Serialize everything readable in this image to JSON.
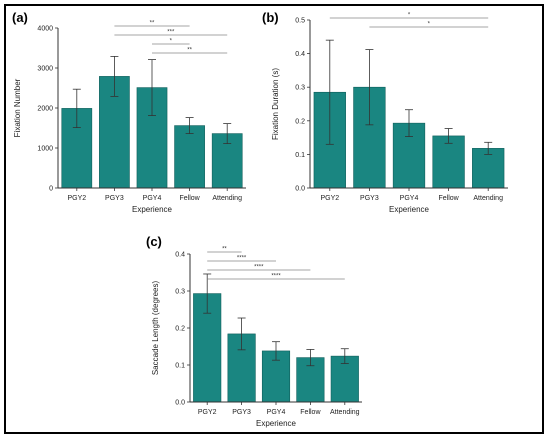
{
  "figure": {
    "colors": {
      "bar": "#1a8681",
      "bar_stroke": "#0f5e5a",
      "axis": "#333333",
      "error": "#333333",
      "sig_line": "#888888"
    }
  },
  "chart_data": [
    {
      "type": "bar",
      "panel": "(a)",
      "categories": [
        "PGY2",
        "PGY3",
        "PGY4",
        "Fellow",
        "Attending"
      ],
      "values": [
        1990,
        2790,
        2510,
        1560,
        1360
      ],
      "errors": [
        480,
        500,
        700,
        200,
        250
      ],
      "xlabel": "Experience",
      "ylabel": "Fixation Number",
      "ylim": [
        0,
        4000
      ],
      "yticks": [
        0,
        1000,
        2000,
        3000,
        4000
      ],
      "ytick_labels": [
        "0",
        "1000",
        "2000",
        "3000",
        "4000"
      ],
      "significance": [
        {
          "from": 1,
          "to": 3,
          "label": "**"
        },
        {
          "from": 1,
          "to": 4,
          "label": "***"
        },
        {
          "from": 2,
          "to": 3,
          "label": "*"
        },
        {
          "from": 2,
          "to": 4,
          "label": "**"
        }
      ]
    },
    {
      "type": "bar",
      "panel": "(b)",
      "categories": [
        "PGY2",
        "PGY3",
        "PGY4",
        "Fellow",
        "Attending"
      ],
      "values": [
        0.285,
        0.3,
        0.193,
        0.155,
        0.118
      ],
      "errors": [
        0.155,
        0.112,
        0.04,
        0.022,
        0.018
      ],
      "xlabel": "Experience",
      "ylabel": "Fixation Duration (s)",
      "ylim": [
        0,
        0.5
      ],
      "yticks": [
        0,
        0.1,
        0.2,
        0.3,
        0.4,
        0.5
      ],
      "ytick_labels": [
        "0.0",
        "0.1",
        "0.2",
        "0.3",
        "0.4",
        "0.5"
      ],
      "significance": [
        {
          "from": 0,
          "to": 4,
          "label": "*"
        },
        {
          "from": 1,
          "to": 4,
          "label": "*"
        }
      ]
    },
    {
      "type": "bar",
      "panel": "(c)",
      "categories": [
        "PGY2",
        "PGY3",
        "PGY4",
        "Fellow",
        "Attending"
      ],
      "values": [
        0.293,
        0.184,
        0.138,
        0.12,
        0.124
      ],
      "errors": [
        0.053,
        0.043,
        0.025,
        0.022,
        0.02
      ],
      "xlabel": "Experience",
      "ylabel": "Saccade Length (degrees)",
      "ylim": [
        0,
        0.4
      ],
      "yticks": [
        0,
        0.1,
        0.2,
        0.3,
        0.4
      ],
      "ytick_labels": [
        "0.0",
        "0.1",
        "0.2",
        "0.3",
        "0.4"
      ],
      "significance": [
        {
          "from": 0,
          "to": 1,
          "label": "**"
        },
        {
          "from": 0,
          "to": 2,
          "label": "****"
        },
        {
          "from": 0,
          "to": 3,
          "label": "****"
        },
        {
          "from": 0,
          "to": 4,
          "label": "****"
        }
      ]
    }
  ]
}
